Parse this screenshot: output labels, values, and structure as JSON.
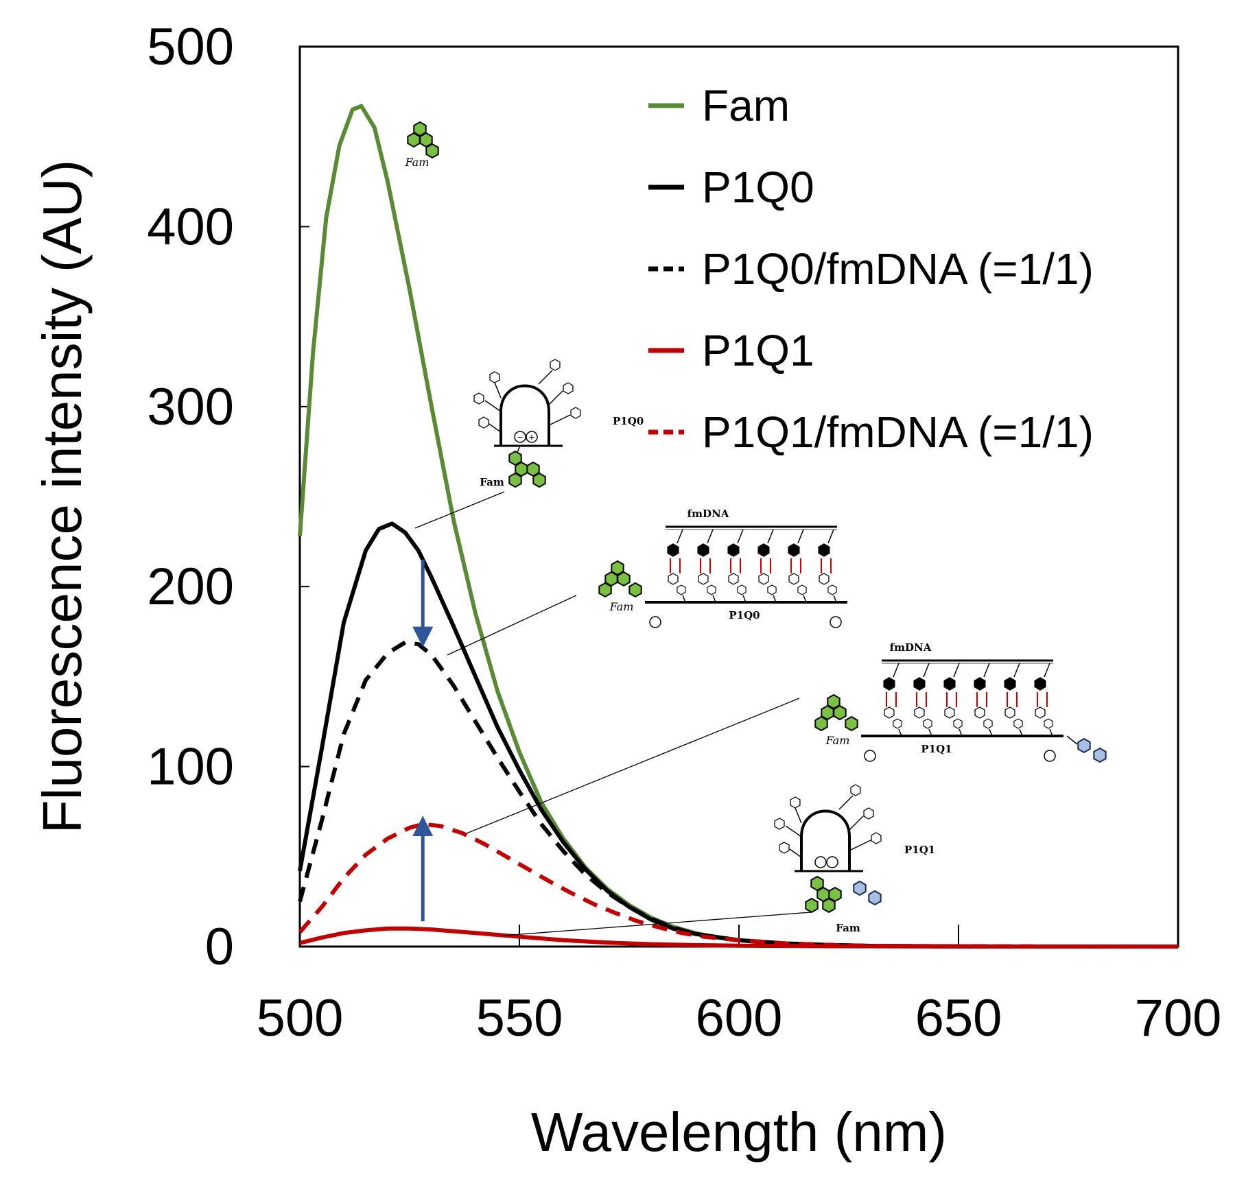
{
  "chart_data": {
    "type": "line",
    "xlabel": "Wavelength (nm)",
    "ylabel": "Fluorescence intensity (AU)",
    "xlim": [
      500,
      700
    ],
    "ylim": [
      0,
      500
    ],
    "xticks": [
      500,
      550,
      600,
      650,
      700
    ],
    "yticks": [
      0,
      100,
      200,
      300,
      400,
      500
    ],
    "legend_position": "top-right",
    "series": [
      {
        "name": "Fam",
        "color": "#5a8a35",
        "dash": "solid",
        "x": [
          500,
          503,
          506,
          509,
          512,
          514,
          517,
          520,
          525,
          530,
          535,
          540,
          545,
          550,
          555,
          560,
          565,
          570,
          575,
          580,
          585,
          590,
          595,
          600,
          605,
          610,
          615,
          620,
          630,
          640,
          650,
          660,
          680,
          700
        ],
        "y": [
          228,
          330,
          405,
          445,
          465,
          467,
          455,
          425,
          365,
          300,
          237,
          185,
          142,
          108,
          80,
          60,
          44,
          32,
          23,
          16,
          11,
          7.5,
          5,
          3.5,
          2.4,
          1.6,
          1.1,
          0.8,
          0.4,
          0.2,
          0.1,
          0,
          0,
          0
        ]
      },
      {
        "name": "P1Q0",
        "color": "#000000",
        "dash": "solid",
        "x": [
          500,
          505,
          510,
          515,
          518,
          521,
          524,
          527,
          530,
          535,
          540,
          545,
          550,
          555,
          560,
          565,
          570,
          575,
          580,
          585,
          590,
          600,
          610,
          620,
          630,
          650,
          670,
          700
        ],
        "y": [
          42,
          110,
          180,
          220,
          232,
          235,
          230,
          220,
          205,
          178,
          150,
          122,
          98,
          76,
          58,
          43,
          31,
          22,
          15,
          10,
          7,
          3.5,
          1.8,
          0.9,
          0.4,
          0.1,
          0,
          0
        ]
      },
      {
        "name": "P1Q0/fmDNA (=1/1)",
        "color": "#000000",
        "dash": "dashed",
        "x": [
          500,
          505,
          510,
          515,
          520,
          524,
          527,
          530,
          535,
          540,
          545,
          550,
          555,
          560,
          565,
          570,
          575,
          580,
          585,
          590,
          600,
          610,
          620,
          630,
          650,
          670,
          700
        ],
        "y": [
          25,
          70,
          118,
          148,
          163,
          169,
          168,
          162,
          145,
          125,
          105,
          86,
          68,
          53,
          40,
          30,
          22,
          15.5,
          10.5,
          7,
          3.5,
          1.8,
          0.9,
          0.4,
          0.1,
          0,
          0
        ]
      },
      {
        "name": "P1Q1",
        "color": "#c00000",
        "dash": "solid",
        "x": [
          500,
          505,
          510,
          515,
          520,
          525,
          530,
          540,
          550,
          560,
          570,
          580,
          590,
          600,
          620,
          650,
          700
        ],
        "y": [
          2,
          5,
          7.5,
          9,
          10,
          10,
          9.5,
          7.5,
          5.5,
          3.5,
          2.2,
          1.3,
          0.8,
          0.5,
          0.2,
          0,
          0
        ]
      },
      {
        "name": "P1Q1/fmDNA (=1/1)",
        "color": "#c00000",
        "dash": "dashed",
        "x": [
          500,
          505,
          510,
          515,
          520,
          525,
          528,
          532,
          537,
          542,
          547,
          552,
          557,
          562,
          567,
          572,
          577,
          582,
          587,
          592,
          600,
          610,
          620,
          630,
          650,
          700
        ],
        "y": [
          8,
          22,
          38,
          51,
          60,
          66,
          68,
          67,
          63,
          57,
          50,
          43,
          36,
          29.5,
          23.5,
          18.5,
          14,
          10.5,
          7.5,
          5.5,
          3.5,
          1.8,
          0.9,
          0.4,
          0.1,
          0
        ]
      }
    ],
    "arrows": [
      {
        "direction": "down",
        "x": 528,
        "y_from": 215,
        "y_to": 172,
        "color": "#2e5597"
      },
      {
        "direction": "up",
        "x": 528,
        "y_from": 14,
        "y_to": 67,
        "color": "#2e5597"
      }
    ]
  },
  "diagram_labels": {
    "fam": "Fam",
    "fmdna": "fmDNA",
    "p1q0": "P1Q0",
    "p1q1": "P1Q1"
  }
}
